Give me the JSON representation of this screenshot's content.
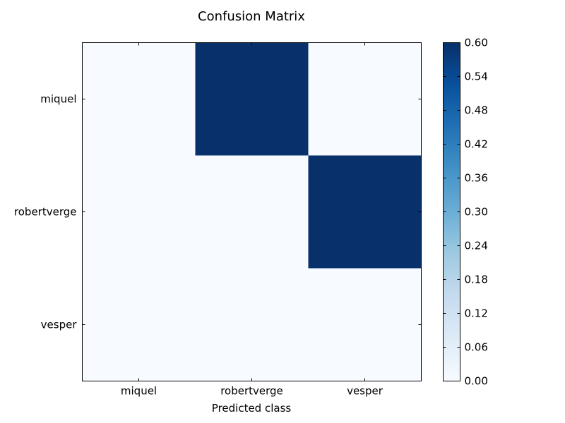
{
  "chart_data": {
    "type": "heatmap",
    "title": "Confusion Matrix",
    "xlabel": "Predicted class",
    "ylabel": "",
    "x_categories": [
      "miquel",
      "robertverge",
      "vesper"
    ],
    "y_categories": [
      "miquel",
      "robertverge",
      "vesper"
    ],
    "values": [
      [
        0.0,
        0.6,
        0.0
      ],
      [
        0.0,
        0.0,
        0.6
      ],
      [
        0.0,
        0.0,
        0.0
      ]
    ],
    "colorbar": {
      "range": [
        0.0,
        0.6
      ],
      "ticks": [
        "0.00",
        "0.06",
        "0.12",
        "0.18",
        "0.24",
        "0.30",
        "0.36",
        "0.42",
        "0.48",
        "0.54",
        "0.60"
      ]
    },
    "colormap": "Blues",
    "colors": {
      "low": "#f7fbff",
      "high": "#08306b"
    }
  }
}
